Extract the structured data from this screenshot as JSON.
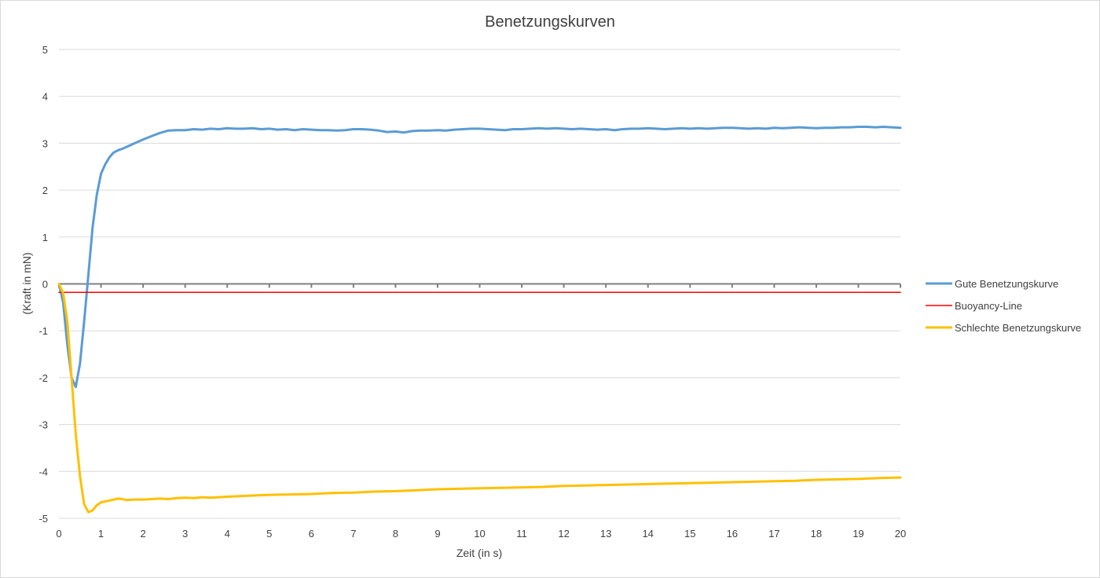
{
  "chart_data": {
    "type": "line",
    "title": "Benetzungskurven",
    "xlabel": "Zeit (in s)",
    "ylabel": "(Kraft in mN)",
    "xlim": [
      0,
      20
    ],
    "ylim": [
      -5,
      5
    ],
    "xticks": [
      "0",
      "1",
      "2",
      "3",
      "4",
      "5",
      "6",
      "7",
      "8",
      "9",
      "10",
      "11",
      "12",
      "13",
      "14",
      "15",
      "16",
      "17",
      "18",
      "19",
      "20"
    ],
    "yticks": [
      "5",
      "4",
      "3",
      "2",
      "1",
      "0",
      "-1",
      "-2",
      "-3",
      "-4",
      "-5"
    ],
    "grid": true,
    "legend_position": "right",
    "series": [
      {
        "name": "Gute Benetzungskurve",
        "color": "#5b9bd5",
        "x": [
          0,
          0.1,
          0.2,
          0.3,
          0.4,
          0.5,
          0.6,
          0.7,
          0.8,
          0.9,
          1.0,
          1.1,
          1.2,
          1.3,
          1.4,
          1.5,
          1.6,
          1.8,
          2.0,
          2.2,
          2.4,
          2.6,
          2.8,
          3.0,
          3.2,
          3.4,
          3.6,
          3.8,
          4.0,
          4.2,
          4.4,
          4.6,
          4.8,
          5.0,
          5.2,
          5.4,
          5.6,
          5.8,
          6.0,
          6.2,
          6.4,
          6.6,
          6.8,
          7.0,
          7.2,
          7.4,
          7.6,
          7.8,
          8.0,
          8.2,
          8.4,
          8.6,
          8.8,
          9.0,
          9.2,
          9.4,
          9.6,
          9.8,
          10.0,
          10.2,
          10.4,
          10.6,
          10.8,
          11.0,
          11.2,
          11.4,
          11.6,
          11.8,
          12.0,
          12.2,
          12.4,
          12.6,
          12.8,
          13.0,
          13.2,
          13.4,
          13.6,
          13.8,
          14.0,
          14.2,
          14.4,
          14.6,
          14.8,
          15.0,
          15.2,
          15.4,
          15.6,
          15.8,
          16.0,
          16.2,
          16.4,
          16.6,
          16.8,
          17.0,
          17.2,
          17.4,
          17.6,
          17.8,
          18.0,
          18.2,
          18.4,
          18.6,
          18.8,
          19.0,
          19.2,
          19.4,
          19.6,
          19.8,
          20.0
        ],
        "y": [
          0.0,
          -0.4,
          -1.3,
          -2.0,
          -2.2,
          -1.7,
          -0.8,
          0.2,
          1.2,
          1.9,
          2.35,
          2.55,
          2.7,
          2.8,
          2.85,
          2.88,
          2.92,
          3.0,
          3.08,
          3.15,
          3.22,
          3.27,
          3.28,
          3.28,
          3.3,
          3.29,
          3.31,
          3.3,
          3.32,
          3.31,
          3.31,
          3.32,
          3.3,
          3.31,
          3.29,
          3.3,
          3.28,
          3.3,
          3.29,
          3.28,
          3.28,
          3.27,
          3.28,
          3.3,
          3.3,
          3.29,
          3.27,
          3.24,
          3.25,
          3.23,
          3.26,
          3.27,
          3.27,
          3.28,
          3.27,
          3.29,
          3.3,
          3.31,
          3.31,
          3.3,
          3.29,
          3.28,
          3.3,
          3.3,
          3.31,
          3.32,
          3.31,
          3.32,
          3.31,
          3.3,
          3.31,
          3.3,
          3.29,
          3.3,
          3.28,
          3.3,
          3.31,
          3.31,
          3.32,
          3.31,
          3.3,
          3.31,
          3.32,
          3.31,
          3.32,
          3.31,
          3.32,
          3.33,
          3.33,
          3.32,
          3.31,
          3.32,
          3.31,
          3.33,
          3.32,
          3.33,
          3.34,
          3.33,
          3.32,
          3.33,
          3.33,
          3.34,
          3.34,
          3.35,
          3.35,
          3.34,
          3.35,
          3.34,
          3.33
        ]
      },
      {
        "name": "Buoyancy-Line",
        "color": "#ff0000",
        "x": [
          0,
          20
        ],
        "y": [
          -0.18,
          -0.18
        ]
      },
      {
        "name": "Schlechte Benetzungskurve",
        "color": "#ffc000",
        "x": [
          0,
          0.1,
          0.2,
          0.3,
          0.4,
          0.5,
          0.6,
          0.7,
          0.8,
          0.9,
          1.0,
          1.1,
          1.2,
          1.3,
          1.4,
          1.5,
          1.6,
          1.8,
          2.0,
          2.2,
          2.4,
          2.6,
          2.8,
          3.0,
          3.2,
          3.4,
          3.6,
          3.8,
          4.0,
          4.5,
          5.0,
          5.5,
          6.0,
          6.5,
          7.0,
          7.5,
          8.0,
          8.5,
          9.0,
          9.5,
          10.0,
          10.5,
          11.0,
          11.5,
          12.0,
          12.5,
          13.0,
          13.5,
          14.0,
          14.5,
          15.0,
          15.5,
          16.0,
          16.5,
          17.0,
          17.5,
          18.0,
          18.5,
          19.0,
          19.5,
          20.0
        ],
        "y": [
          0.0,
          -0.2,
          -0.8,
          -2.0,
          -3.2,
          -4.1,
          -4.7,
          -4.87,
          -4.83,
          -4.72,
          -4.66,
          -4.64,
          -4.62,
          -4.6,
          -4.58,
          -4.59,
          -4.61,
          -4.6,
          -4.6,
          -4.59,
          -4.58,
          -4.59,
          -4.57,
          -4.56,
          -4.57,
          -4.55,
          -4.56,
          -4.55,
          -4.54,
          -4.52,
          -4.5,
          -4.49,
          -4.48,
          -4.46,
          -4.45,
          -4.43,
          -4.42,
          -4.4,
          -4.38,
          -4.37,
          -4.36,
          -4.35,
          -4.34,
          -4.33,
          -4.31,
          -4.3,
          -4.29,
          -4.28,
          -4.27,
          -4.26,
          -4.25,
          -4.24,
          -4.23,
          -4.22,
          -4.21,
          -4.2,
          -4.18,
          -4.17,
          -4.16,
          -4.14,
          -4.13
        ]
      }
    ]
  }
}
